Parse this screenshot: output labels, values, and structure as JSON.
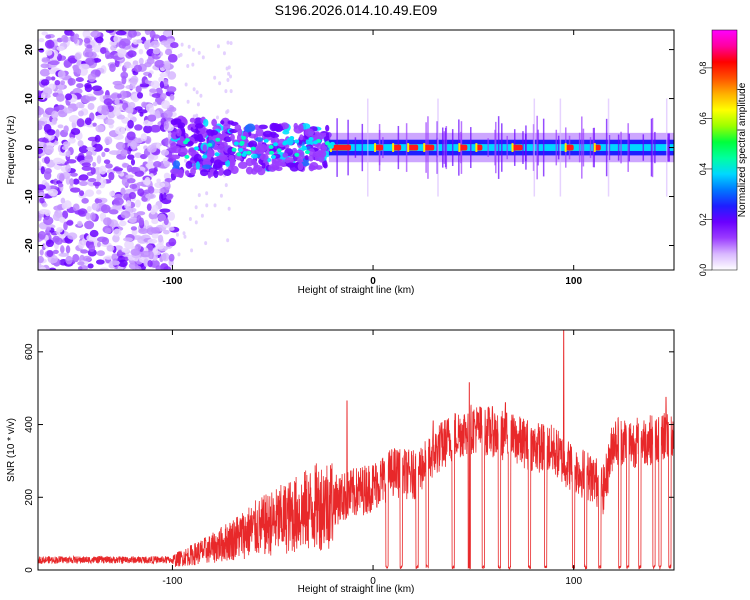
{
  "chart_data": [
    {
      "type": "heatmap",
      "title": "S196.2026.014.10.49.E09",
      "xlabel": "Height of straight line (km)",
      "ylabel": "Frequency (Hz)",
      "xlim": [
        -167,
        150
      ],
      "ylim": [
        -25,
        24
      ],
      "xticks": [
        -100,
        0,
        100
      ],
      "yticks": [
        20,
        10,
        0,
        -10,
        -20
      ],
      "colorbar": {
        "label": "Normalized spectral amplitude",
        "range": [
          0,
          0.95
        ],
        "ticks": [
          0.0,
          0.2,
          0.4,
          0.6,
          0.8
        ],
        "colors": [
          "#ffffff",
          "#d9b8ff",
          "#9b3cff",
          "#6a00ff",
          "#1e1eff",
          "#0077ff",
          "#00d8ff",
          "#00ffa0",
          "#00ff3c",
          "#9cff00",
          "#ffff00",
          "#ffb000",
          "#ff5000",
          "#ff0000",
          "#ff00a0",
          "#ff00ff"
        ]
      },
      "description_regions": [
        {
          "name": "noise",
          "x": [
            -167,
            -100
          ],
          "freq": [
            -25,
            24
          ]
        },
        {
          "name": "transition",
          "x": [
            -100,
            -20
          ],
          "freq": [
            -6,
            6
          ]
        },
        {
          "name": "signal_line",
          "x": [
            -20,
            150
          ],
          "freq_center": 0
        }
      ]
    },
    {
      "type": "line",
      "xlabel": "Height of straight line (km)",
      "ylabel": "SNR (10 * v/v)",
      "xlim": [
        -167,
        150
      ],
      "ylim": [
        0,
        660
      ],
      "xticks": [
        -100,
        0,
        100
      ],
      "yticks": [
        0,
        200,
        400,
        600
      ],
      "color": "#e8282a",
      "profile": {
        "x": [
          -167,
          -140,
          -110,
          -100,
          -80,
          -60,
          -40,
          -20,
          -10,
          0,
          10,
          20,
          30,
          40,
          50,
          60,
          70,
          80,
          90,
          95,
          100,
          110,
          115,
          120,
          130,
          140,
          150
        ],
        "y": [
          20,
          20,
          22,
          25,
          60,
          110,
          150,
          190,
          210,
          230,
          270,
          260,
          320,
          370,
          390,
          380,
          360,
          340,
          330,
          300,
          280,
          250,
          220,
          360,
          350,
          360,
          380
        ]
      },
      "dropouts_x": [
        7,
        14,
        22,
        27,
        40,
        48,
        55,
        63,
        68,
        78,
        86,
        100,
        106,
        113,
        123,
        127,
        133,
        140,
        143,
        148
      ],
      "spikes": [
        {
          "x": -13,
          "y": 465
        },
        {
          "x": 30,
          "y": 410
        },
        {
          "x": 48,
          "y": 515
        },
        {
          "x": 66,
          "y": 460
        },
        {
          "x": 95,
          "y": 660
        },
        {
          "x": 146,
          "y": 475
        }
      ]
    }
  ]
}
